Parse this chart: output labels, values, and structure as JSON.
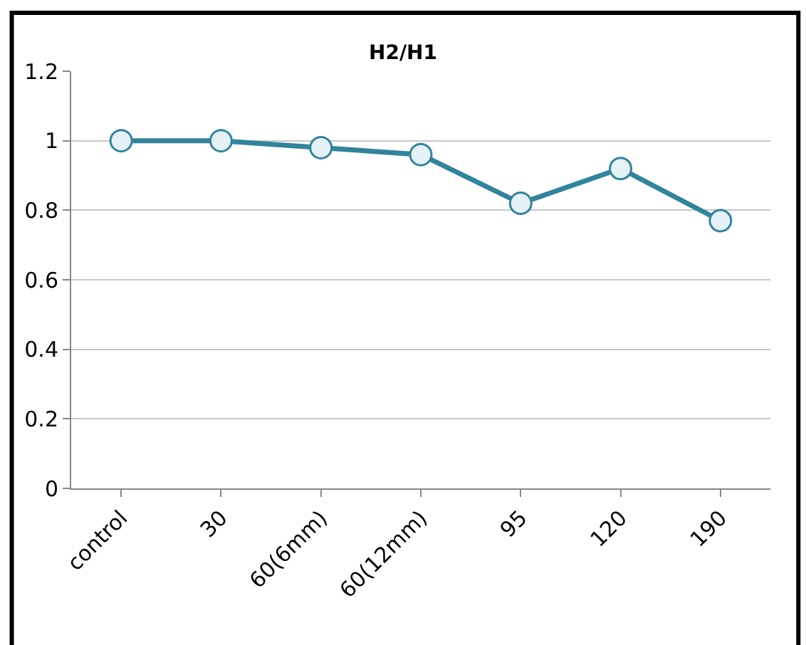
{
  "chart_data": {
    "type": "line",
    "title": "H2/H1",
    "categories": [
      "control",
      "30",
      "60(6mm)",
      "60(12mm)",
      "95",
      "120",
      "190"
    ],
    "series": [
      {
        "color": "#31849b",
        "values": [
          1.0,
          1.0,
          0.98,
          0.96,
          0.82,
          0.92,
          0.77
        ]
      }
    ],
    "ylim": [
      0,
      1.2
    ],
    "yticks": [
      0,
      0.2,
      0.4,
      0.6,
      0.8,
      1,
      1.2
    ],
    "grid": "y",
    "legend": false,
    "marker": "circle",
    "line_style": "solid"
  }
}
